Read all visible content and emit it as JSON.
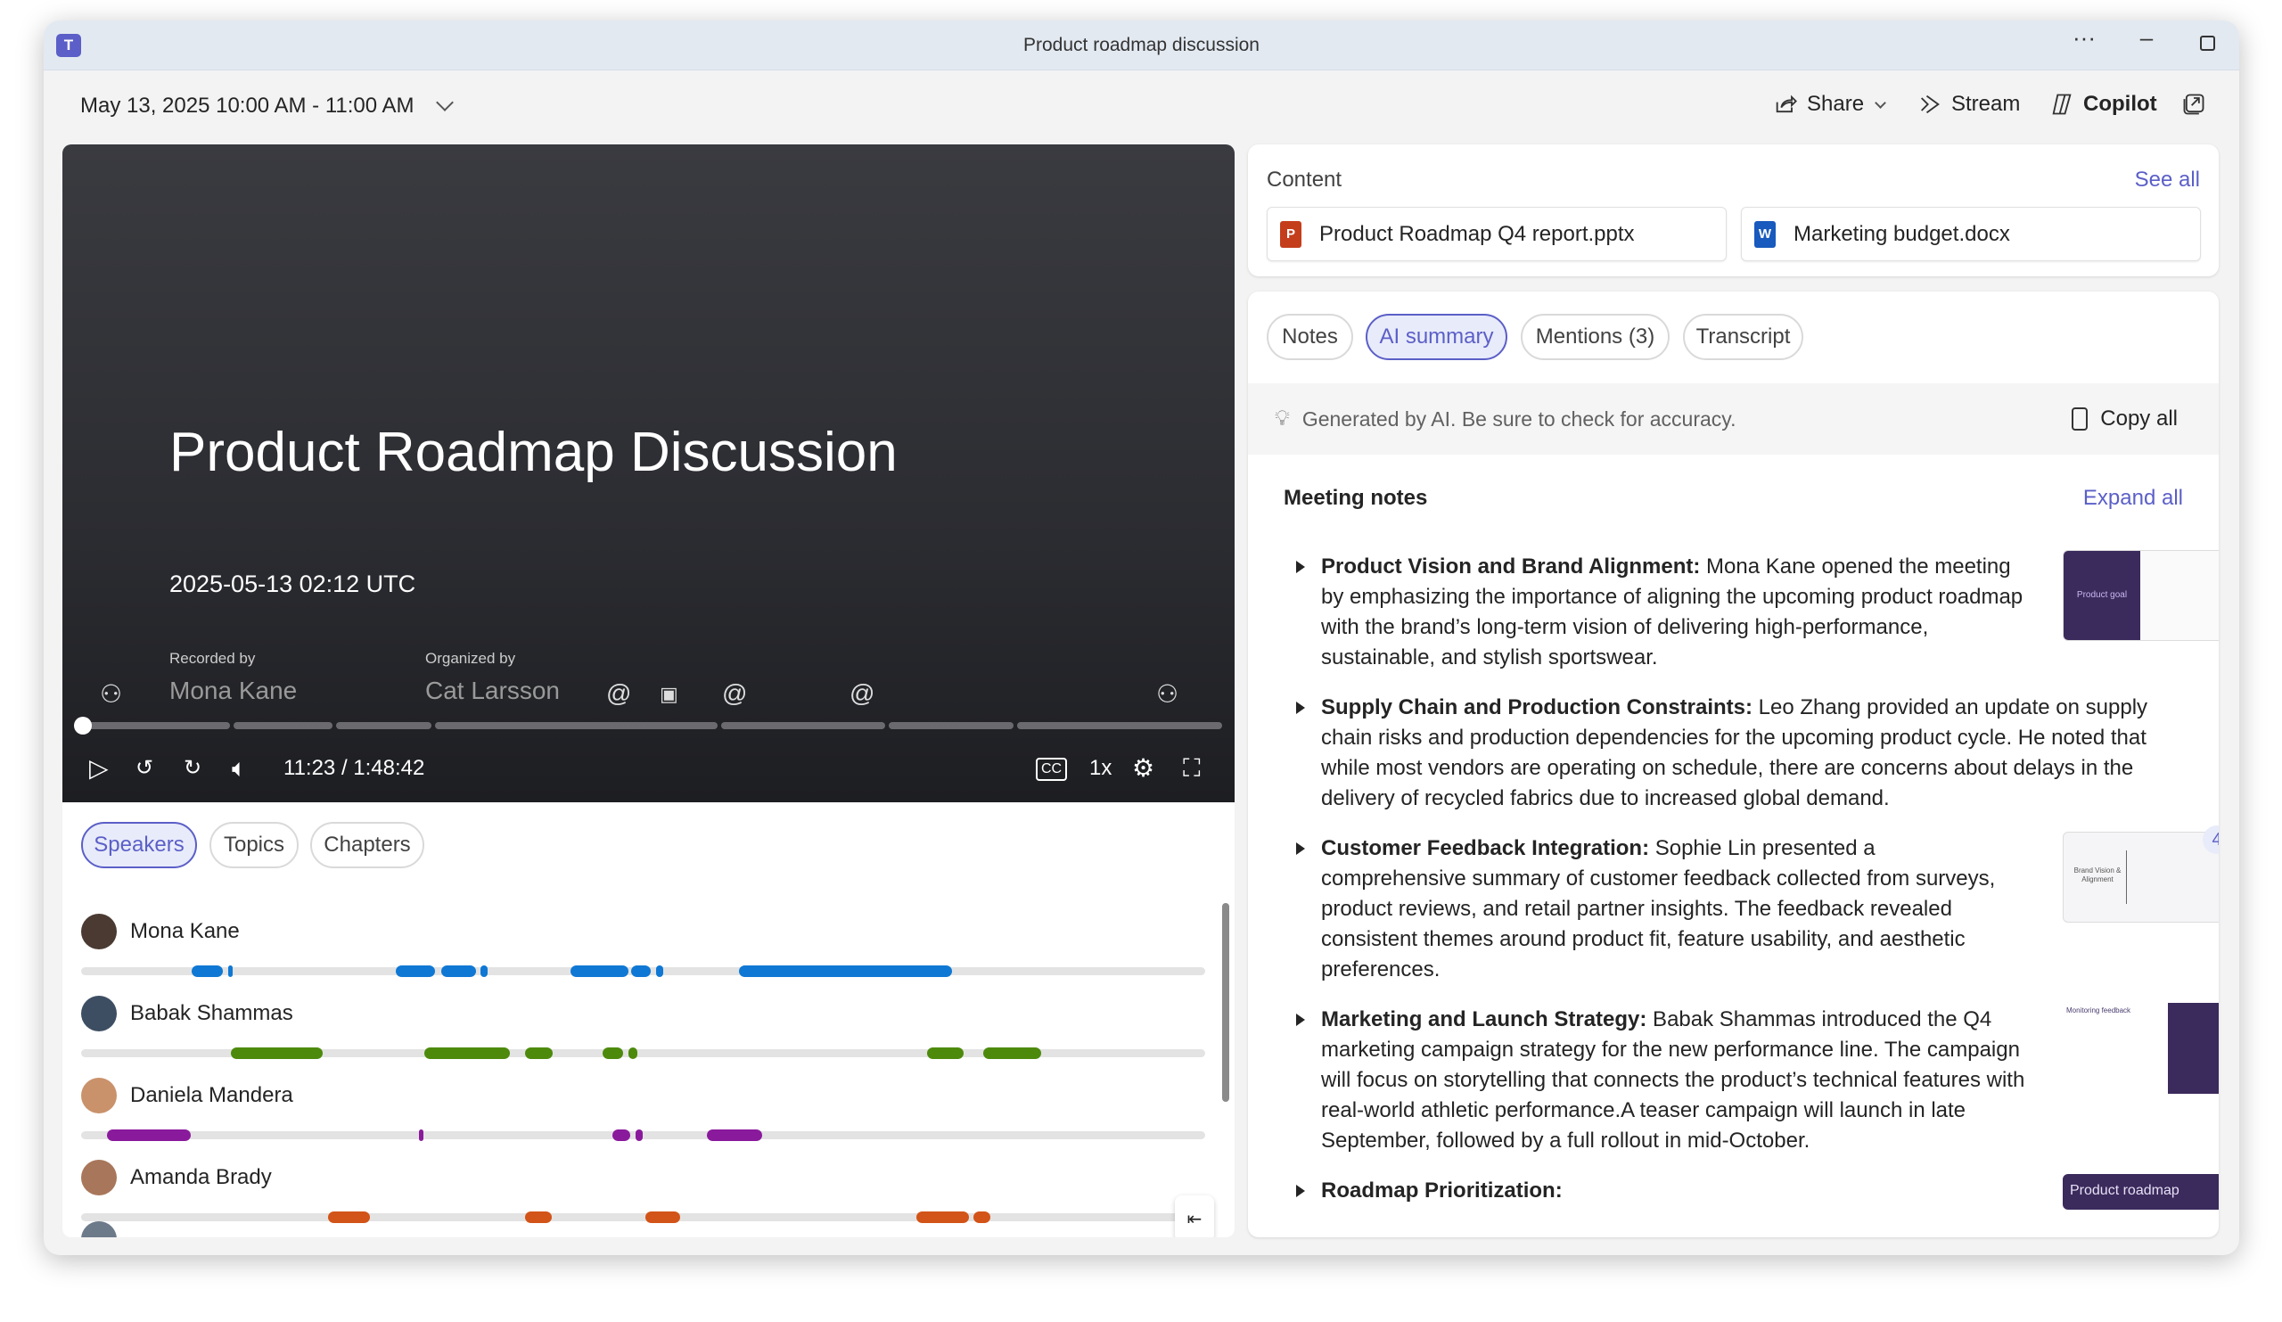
{
  "window": {
    "title": "Product roadmap discussion",
    "app_icon": "teams-icon"
  },
  "header": {
    "date_range": "May 13, 2025 10:00 AM - 11:00 AM",
    "share": "Share",
    "stream": "Stream",
    "copilot": "Copilot"
  },
  "video": {
    "title": "Product Roadmap Discussion",
    "timestamp": "2025-05-13 02:12 UTC",
    "recorded_by_label": "Recorded by",
    "recorded_by": "Mona Kane",
    "organized_by_label": "Organized by",
    "organized_by": "Cat Larsson",
    "time": "11:23 / 1:48:42",
    "speed": "1x"
  },
  "left_tabs": [
    {
      "label": "Speakers",
      "active": true
    },
    {
      "label": "Topics"
    },
    {
      "label": "Chapters"
    }
  ],
  "speakers": [
    {
      "name": "Mona Kane",
      "color": "#0f78d4",
      "segments_min": [
        [
          10.7,
          13.7
        ],
        [
          14.2,
          14.4
        ],
        [
          30.4,
          34.2
        ],
        [
          34.8,
          38.2
        ],
        [
          38.6,
          39.3
        ],
        [
          47.3,
          52.9
        ],
        [
          53.2,
          55.1
        ],
        [
          55.6,
          56.3
        ],
        [
          63.6,
          84.2
        ]
      ]
    },
    {
      "name": "Babak Shammas",
      "color": "#4d8a0c",
      "segments_min": [
        [
          14.5,
          23.4
        ],
        [
          33.2,
          41.5
        ],
        [
          42.9,
          45.6
        ],
        [
          50.4,
          52.4
        ],
        [
          52.9,
          53.8
        ],
        [
          81.8,
          85.3
        ],
        [
          87.2,
          92.8
        ]
      ]
    },
    {
      "name": "Daniela Mandera",
      "color": "#8a1a9c",
      "segments_min": [
        [
          2.5,
          10.6
        ],
        [
          32.7,
          33.1
        ],
        [
          51.4,
          53.1
        ],
        [
          53.6,
          54.3
        ],
        [
          60.5,
          65.9
        ]
      ]
    },
    {
      "name": "Amanda Brady",
      "color": "#d35418",
      "segments_min": [
        [
          23.9,
          27.9
        ],
        [
          42.9,
          45.5
        ],
        [
          54.6,
          57.9
        ],
        [
          80.8,
          85.9
        ],
        [
          86.3,
          87.9
        ]
      ]
    }
  ],
  "recording_length_min": 108.7,
  "content": {
    "title": "Content",
    "see_all": "See all",
    "files": [
      {
        "name": "Product Roadmap Q4 report.pptx",
        "type": "powerpoint"
      },
      {
        "name": "Marketing budget.docx",
        "type": "word"
      }
    ]
  },
  "right_tabs": [
    {
      "label": "Notes"
    },
    {
      "label": "AI summary",
      "active": true
    },
    {
      "label": "Mentions (3)"
    },
    {
      "label": "Transcript"
    }
  ],
  "disclaimer": "Generated by AI. Be sure to check for accuracy.",
  "copy_all": "Copy all",
  "meeting_notes": {
    "title": "Meeting notes",
    "expand_all": "Expand all",
    "items": [
      {
        "heading": "Product Vision and Brand Alignment:",
        "body": " Mona Kane opened the meeting by emphasizing the importance of aligning the upcoming product roadmap with the brand’s long-term vision of delivering high-performance, sustainable, and stylish sportswear.",
        "slide": "Product goal"
      },
      {
        "heading": "Supply Chain and Production Constraints:",
        "body": " Leo Zhang provided an update on supply chain risks and production dependencies for the upcoming product cycle. He noted that while most vendors are operating on schedule, there are concerns about delays in the delivery of recycled fabrics due to increased global demand."
      },
      {
        "heading": "Customer Feedback Integration:",
        "body": " Sophie Lin presented a comprehensive summary of customer feedback collected from surveys, product reviews, and retail partner insights. The feedback revealed consistent themes around product fit, feature usability, and aesthetic preferences.",
        "slide": "Brand Vision & Alignment",
        "badge": "4"
      },
      {
        "heading": "Marketing and Launch Strategy:",
        "body": " Babak Shammas introduced the Q4 marketing campaign strategy for the new performance line. The campaign will focus on storytelling that connects the product’s technical features with real-world athletic performance.A teaser campaign will launch in late September, followed by a full rollout in mid-October.",
        "slide": "Monitoring feedback"
      },
      {
        "heading": "Roadmap Prioritization:",
        "body": "",
        "slide": "Product roadmap"
      }
    ]
  },
  "accent": "#5b5fc7"
}
